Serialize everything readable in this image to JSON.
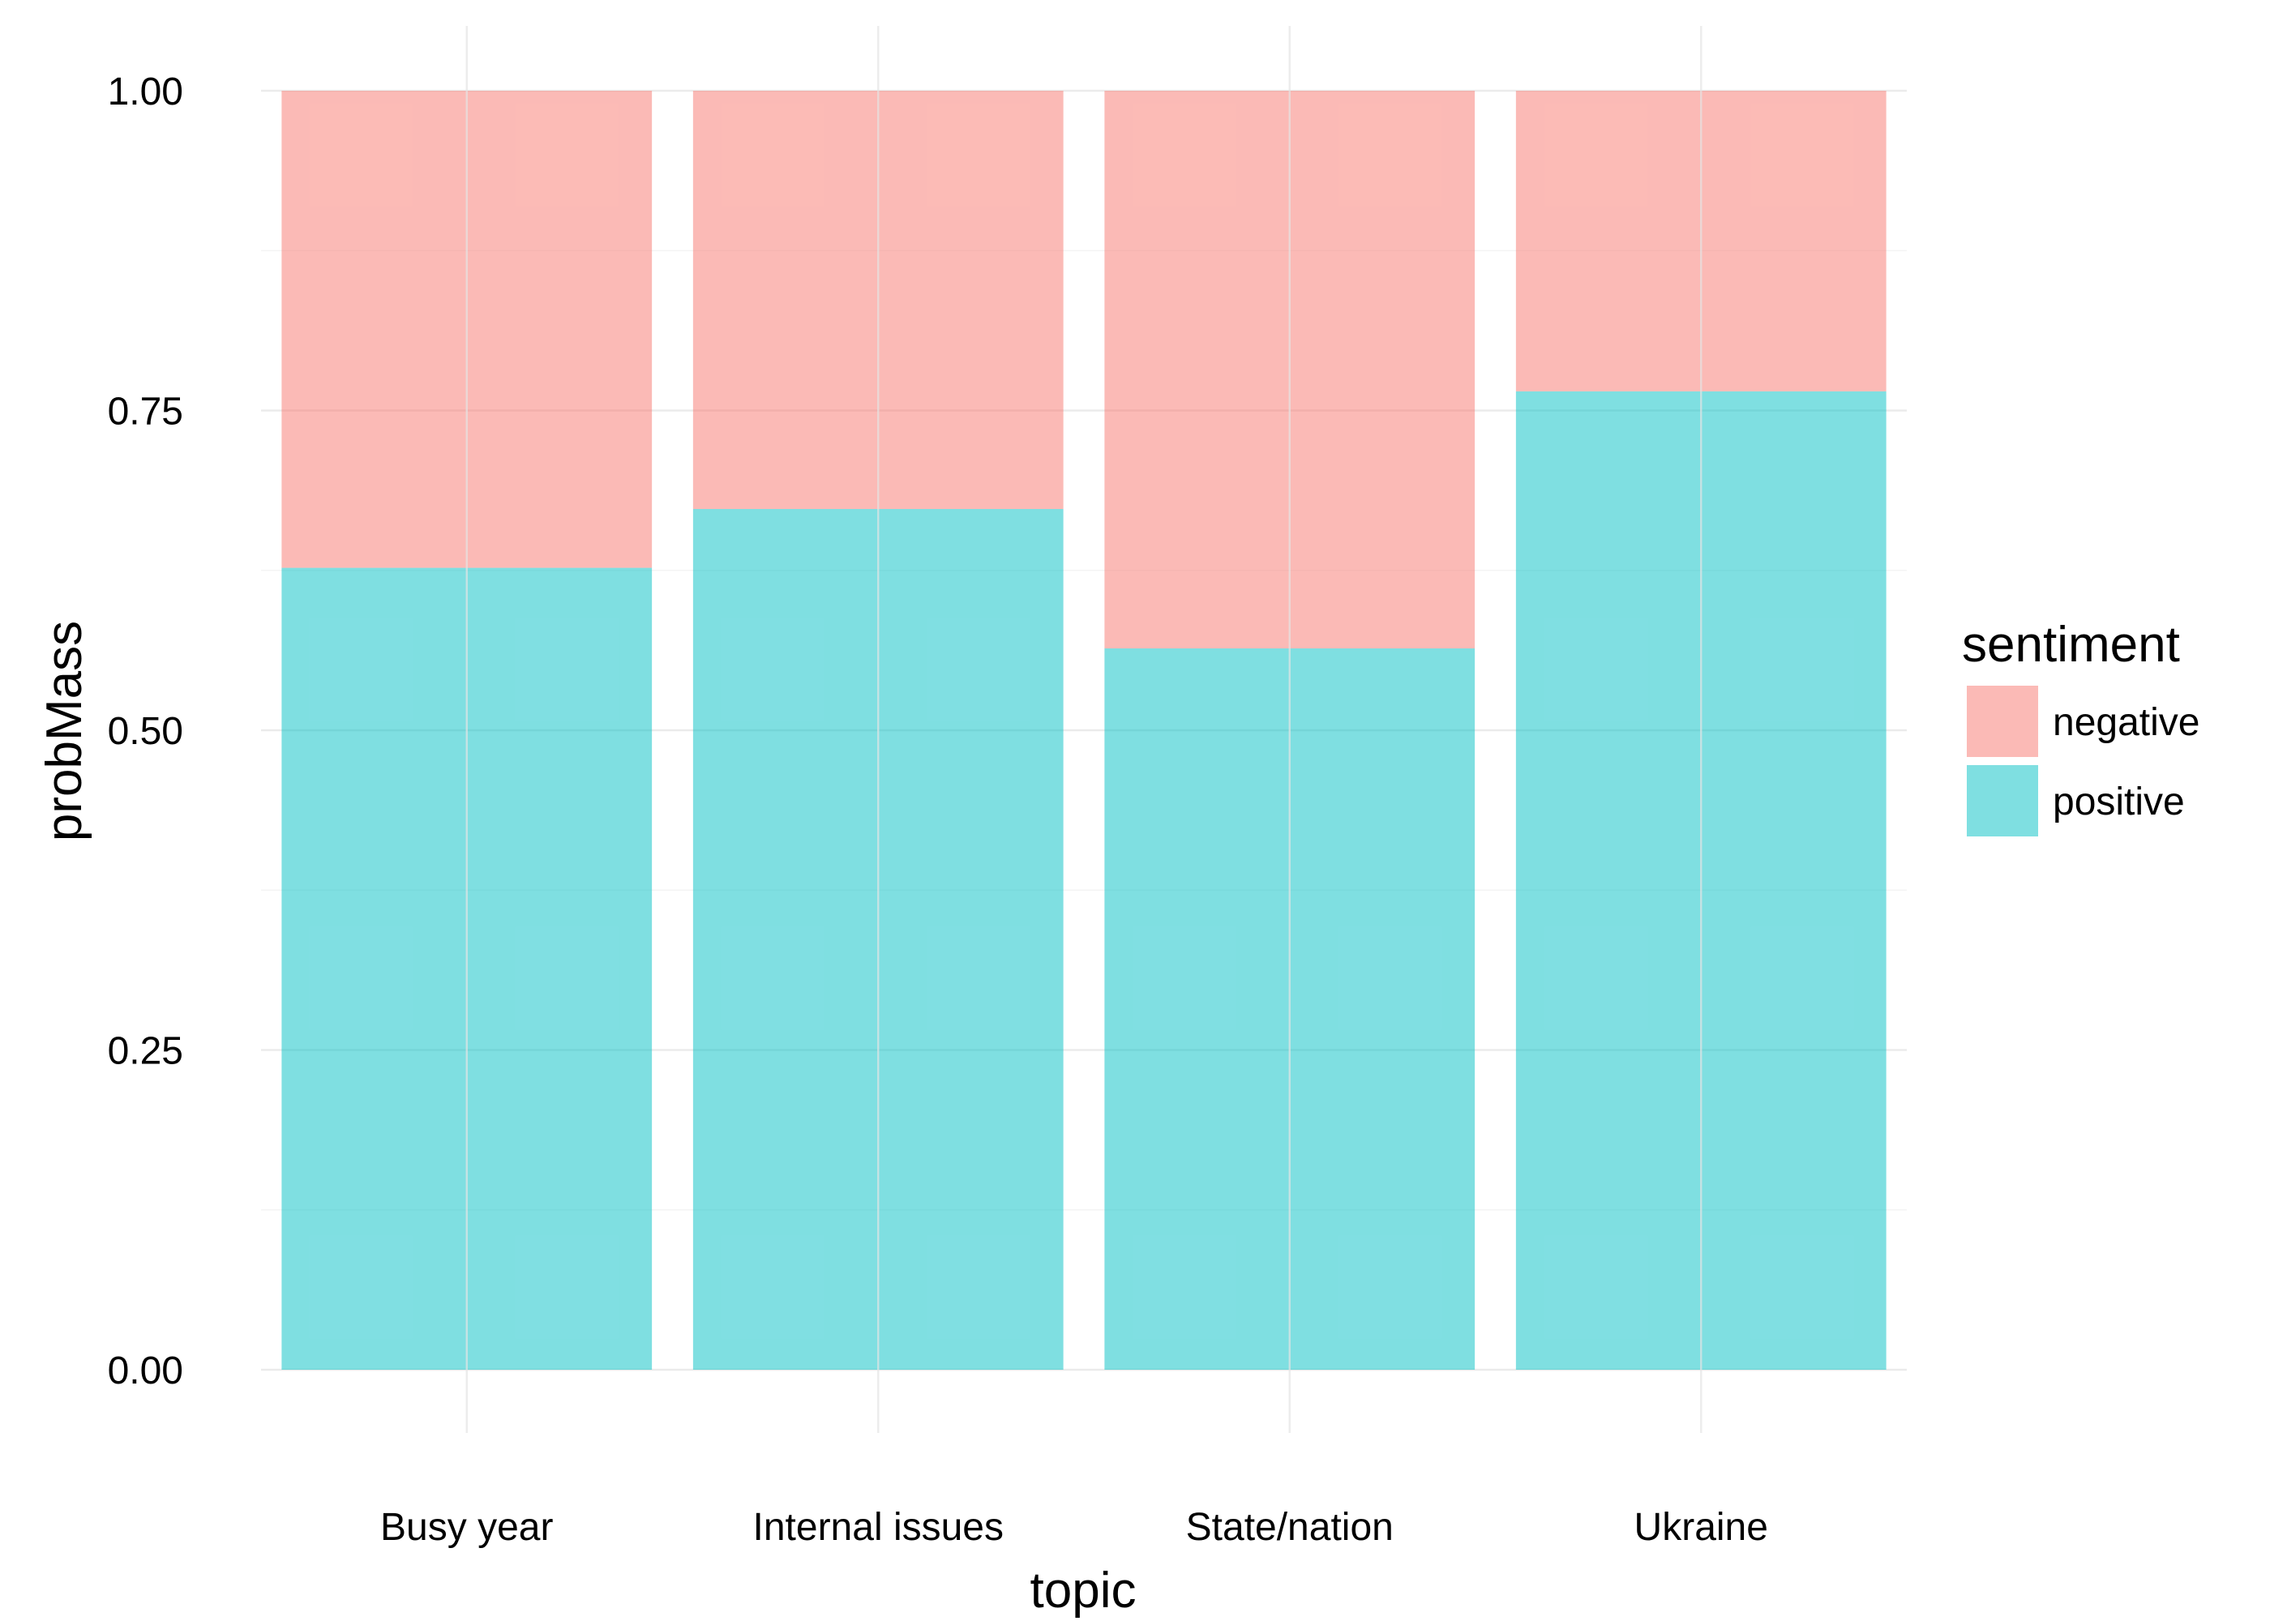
{
  "chart_data": {
    "type": "bar",
    "stacked": true,
    "categories": [
      "Busy year",
      "Internal issues",
      "State/nation",
      "Ukraine"
    ],
    "series": [
      {
        "name": "positive",
        "values": [
          0.627,
          0.673,
          0.564,
          0.765
        ],
        "color": "#00BFC4",
        "opacity": 0.5
      },
      {
        "name": "negative",
        "values": [
          0.373,
          0.327,
          0.436,
          0.235
        ],
        "color": "#F8766D",
        "opacity": 0.5
      }
    ],
    "xlabel": "topic",
    "ylabel": "probMass",
    "ylim": [
      0,
      1
    ],
    "yticks": [
      "0.00",
      "0.25",
      "0.50",
      "0.75",
      "1.00"
    ],
    "ytick_values": [
      0,
      0.25,
      0.5,
      0.75,
      1.0
    ],
    "grid": true,
    "legend": {
      "title": "sentiment",
      "position": "right",
      "entries": [
        {
          "label": "negative",
          "color": "#F8766D"
        },
        {
          "label": "positive",
          "color": "#00BFC4"
        }
      ]
    }
  }
}
